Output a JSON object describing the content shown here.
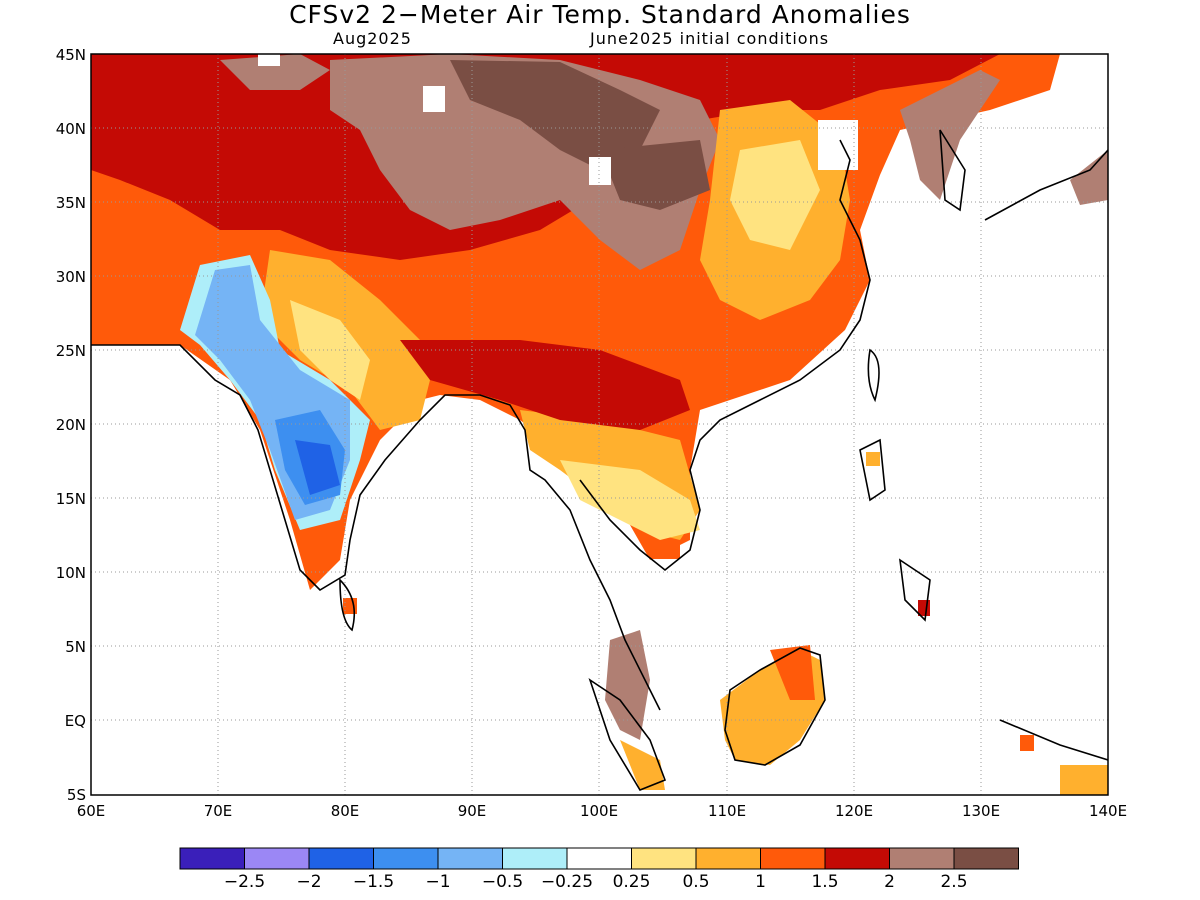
{
  "title": "CFSv2 2−Meter Air Temp. Standard Anomalies",
  "subtitle_left": "Aug2025",
  "subtitle_right": "June2025 initial conditions",
  "map": {
    "lon_range": [
      60,
      140
    ],
    "lat_range": [
      -5,
      45
    ],
    "lon_ticks": [
      "60E",
      "70E",
      "80E",
      "90E",
      "100E",
      "110E",
      "120E",
      "130E",
      "140E"
    ],
    "lat_ticks": [
      "45N",
      "40N",
      "35N",
      "30N",
      "25N",
      "20N",
      "15N",
      "10N",
      "5N",
      "EQ",
      "5S"
    ],
    "grid": "dotted every 10° lon / 5° lat"
  },
  "colorbar": {
    "colors": [
      "#3a1fba",
      "#9b87f5",
      "#1f62e6",
      "#3d8ff0",
      "#75b4f5",
      "#aeeef9",
      "#ffffff",
      "#ffe380",
      "#ffb02e",
      "#ff5a0a",
      "#c40a05",
      "#b07f73",
      "#7a4e44"
    ],
    "labels": [
      "−2.5",
      "−2",
      "−1.5",
      "−1",
      "−0.5",
      "−0.25",
      "0.25",
      "0.5",
      "1",
      "1.5",
      "2",
      "2.5"
    ]
  }
}
